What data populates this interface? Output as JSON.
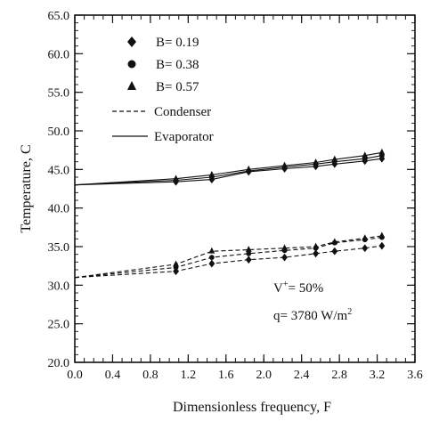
{
  "chart_data": {
    "type": "line",
    "xlabel": "Dimensionless frequency, F",
    "ylabel": "Temperature, ",
    "ylabel_unit": "C",
    "xlim": [
      0.0,
      3.6
    ],
    "ylim": [
      20.0,
      65.0
    ],
    "x_ticks": [
      "0.0",
      "0.4",
      "0.8",
      "1.2",
      "1.6",
      "2.0",
      "2.4",
      "2.8",
      "3.2",
      "3.6"
    ],
    "y_ticks": [
      "20.0",
      "25.0",
      "30.0",
      "35.0",
      "40.0",
      "45.0",
      "50.0",
      "55.0",
      "60.0",
      "65.0"
    ],
    "grid": false,
    "legend_position": "top-left",
    "legend": {
      "markers": [
        {
          "label": "B= 0.19",
          "marker": "diamond"
        },
        {
          "label": "B= 0.38",
          "marker": "circle"
        },
        {
          "label": "B= 0.57",
          "marker": "triangle"
        }
      ],
      "lines": [
        {
          "label": "Condenser",
          "style": "dashed"
        },
        {
          "label": "Evaporator",
          "style": "solid"
        }
      ]
    },
    "annotations": {
      "v_main": "V",
      "v_sup": "+",
      "v_rest": "= 50%",
      "q_main": "q= 3780 W/m",
      "q_sup": "2"
    },
    "series": [
      {
        "group": "Evaporator",
        "B": "B= 0.19",
        "marker": "diamond",
        "style": "solid",
        "x": [
          0.0,
          1.07,
          1.45,
          1.84,
          2.22,
          2.55,
          2.75,
          3.07,
          3.25
        ],
        "y": [
          43.0,
          43.4,
          43.7,
          44.7,
          45.1,
          45.4,
          45.7,
          46.1,
          46.4
        ]
      },
      {
        "group": "Evaporator",
        "B": "B= 0.38",
        "marker": "circle",
        "style": "solid",
        "x": [
          0.0,
          1.07,
          1.45,
          1.84,
          2.22,
          2.55,
          2.75,
          3.07,
          3.25
        ],
        "y": [
          43.0,
          43.6,
          44.0,
          44.8,
          45.3,
          45.7,
          46.0,
          46.4,
          46.8
        ]
      },
      {
        "group": "Evaporator",
        "B": "B= 0.57",
        "marker": "triangle",
        "style": "solid",
        "x": [
          0.0,
          1.07,
          1.45,
          1.84,
          2.22,
          2.55,
          2.75,
          3.07,
          3.25
        ],
        "y": [
          43.0,
          43.8,
          44.3,
          45.0,
          45.5,
          45.9,
          46.3,
          46.8,
          47.2
        ]
      },
      {
        "group": "Condenser",
        "B": "B= 0.19",
        "marker": "diamond",
        "style": "dashed",
        "x": [
          0.0,
          1.07,
          1.45,
          1.84,
          2.22,
          2.55,
          2.75,
          3.07,
          3.25
        ],
        "y": [
          31.0,
          31.8,
          32.8,
          33.3,
          33.6,
          34.1,
          34.4,
          34.8,
          35.1
        ]
      },
      {
        "group": "Condenser",
        "B": "B= 0.38",
        "marker": "circle",
        "style": "dashed",
        "x": [
          0.0,
          1.07,
          1.45,
          1.84,
          2.22,
          2.55,
          2.75,
          3.07,
          3.25
        ],
        "y": [
          31.0,
          32.3,
          33.6,
          34.1,
          34.5,
          34.8,
          35.5,
          35.9,
          36.2
        ]
      },
      {
        "group": "Condenser",
        "B": "B= 0.57",
        "marker": "triangle",
        "style": "dashed",
        "x": [
          0.0,
          1.07,
          1.45,
          1.84,
          2.22,
          2.55,
          2.75,
          3.07,
          3.25
        ],
        "y": [
          31.0,
          32.7,
          34.4,
          34.6,
          34.8,
          35.0,
          35.6,
          36.1,
          36.4
        ]
      }
    ]
  }
}
